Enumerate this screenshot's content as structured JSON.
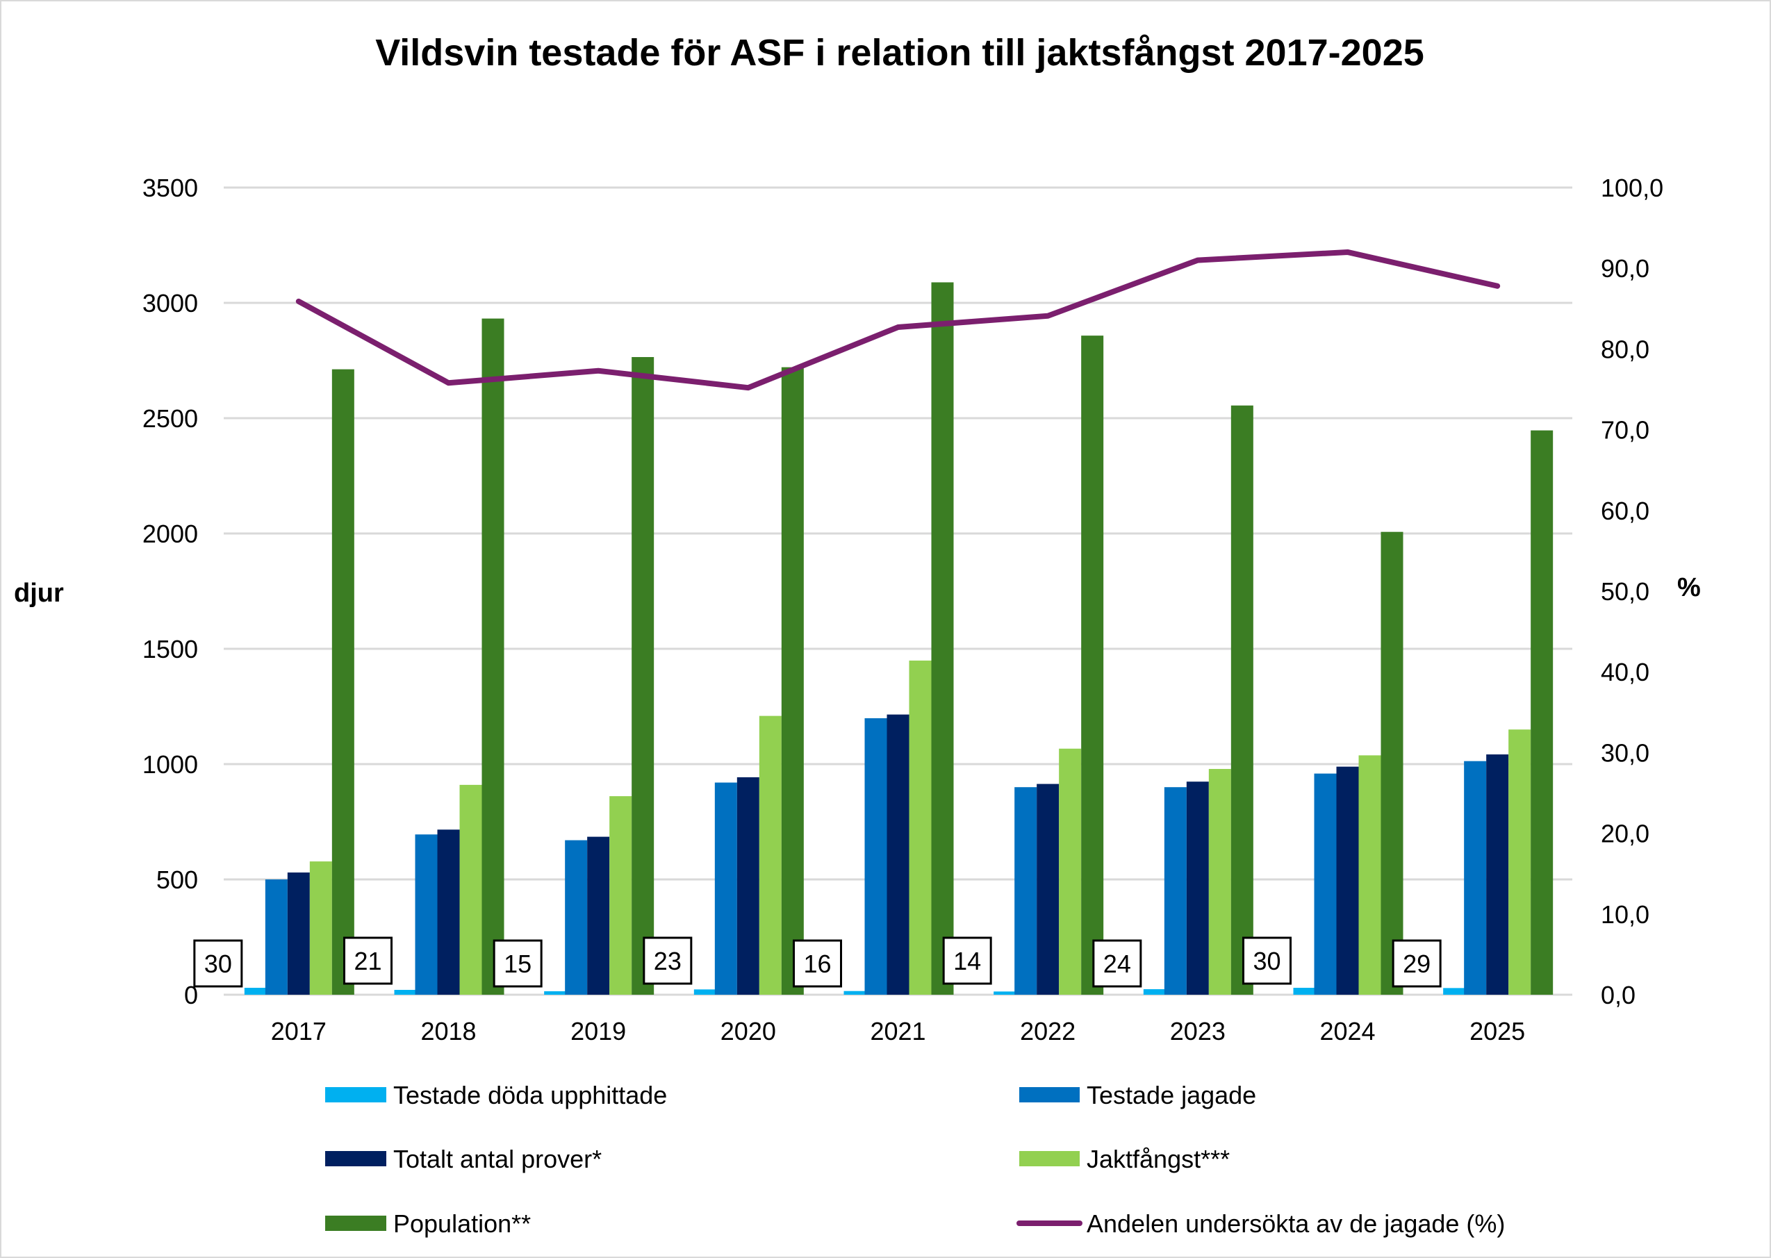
{
  "chart_data": {
    "type": "bar+line",
    "title": "Vildsvin testade för ASF i relation till jaktsfångst 2017-2025",
    "ylabel": "djur",
    "y2label": "%",
    "ylim": [
      0,
      3500
    ],
    "y2lim": [
      0,
      100
    ],
    "yticks": [
      "0",
      "500",
      "1000",
      "1500",
      "2000",
      "2500",
      "3000",
      "3500"
    ],
    "y2ticks": [
      "0,0",
      "10,0",
      "20,0",
      "30,0",
      "40,0",
      "50,0",
      "60,0",
      "70,0",
      "80,0",
      "90,0",
      "100,0"
    ],
    "grid": true,
    "legend_position": "bottom",
    "categories": [
      "2017",
      "2018",
      "2019",
      "2020",
      "2021",
      "2022",
      "2023",
      "2024",
      "2025"
    ],
    "series": [
      {
        "name": "Testade döda upphittade",
        "type": "bar",
        "color": "#00B0F0",
        "values": [
          30,
          21,
          15,
          23,
          16,
          14,
          24,
          30,
          29
        ],
        "data_labels": [
          "30",
          "21",
          "15",
          "23",
          "16",
          "14",
          "24",
          "30",
          "29"
        ]
      },
      {
        "name": "Testade jagade",
        "type": "bar",
        "color": "#0070C0",
        "values": [
          500,
          695,
          670,
          920,
          1199,
          900,
          900,
          959,
          1013
        ]
      },
      {
        "name": "Totalt antal prover*",
        "type": "bar",
        "color": "#002060",
        "values": [
          530,
          716,
          685,
          943,
          1215,
          914,
          924,
          989,
          1042
        ]
      },
      {
        "name": "Jaktfångst***",
        "type": "bar",
        "color": "#92D050",
        "values": [
          578,
          910,
          861,
          1209,
          1449,
          1067,
          979,
          1038,
          1150
        ]
      },
      {
        "name": "Population**",
        "type": "bar",
        "color": "#3B7D23",
        "values": [
          2712,
          2932,
          2765,
          2721,
          3089,
          2858,
          2555,
          2007,
          2447
        ]
      },
      {
        "name": "Andelen undersökta av de jagade (%)",
        "type": "line",
        "axis": "right",
        "color": "#7B1F6E",
        "values": [
          85.9,
          75.8,
          77.3,
          75.2,
          82.7,
          84.1,
          91.0,
          92.0,
          87.8
        ]
      }
    ]
  }
}
